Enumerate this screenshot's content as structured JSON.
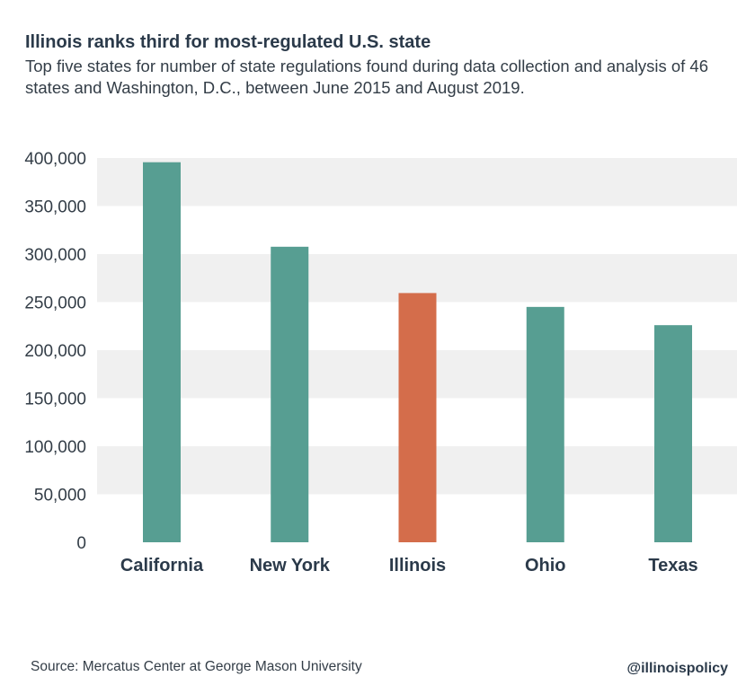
{
  "header": {
    "title": "Illinois ranks third for most-regulated U.S. state",
    "subtitle": "Top five states for number of state regulations found during data collection and analysis of 46 states and Washington, D.C., between June 2015 and August 2019."
  },
  "footer": {
    "source": "Source: Mercatus Center at George Mason University",
    "handle": "@illinoispolicy"
  },
  "colors": {
    "bar": "#579e92",
    "highlight": "#d46d4b",
    "band": "#f0f0f0"
  },
  "chart_data": {
    "type": "bar",
    "title": "Illinois ranks third for most-regulated U.S. state",
    "subtitle": "Top five states for number of state regulations found during data collection and analysis of 46 states and Washington, D.C., between June 2015 and August 2019.",
    "xlabel": "",
    "ylabel": "",
    "categories": [
      "California",
      "New York",
      "Illinois",
      "Ohio",
      "Texas"
    ],
    "values": [
      395608,
      307636,
      259429,
      245000,
      226000
    ],
    "highlight": "Illinois",
    "ylim": [
      0,
      400000
    ],
    "yticks": [
      0,
      50000,
      100000,
      150000,
      200000,
      250000,
      300000,
      350000,
      400000
    ],
    "ytick_labels": [
      "0",
      "50,000",
      "100,000",
      "150,000",
      "200,000",
      "250,000",
      "300,000",
      "350,000",
      "400,000"
    ],
    "grid": "alternating bands",
    "legend": "none"
  }
}
